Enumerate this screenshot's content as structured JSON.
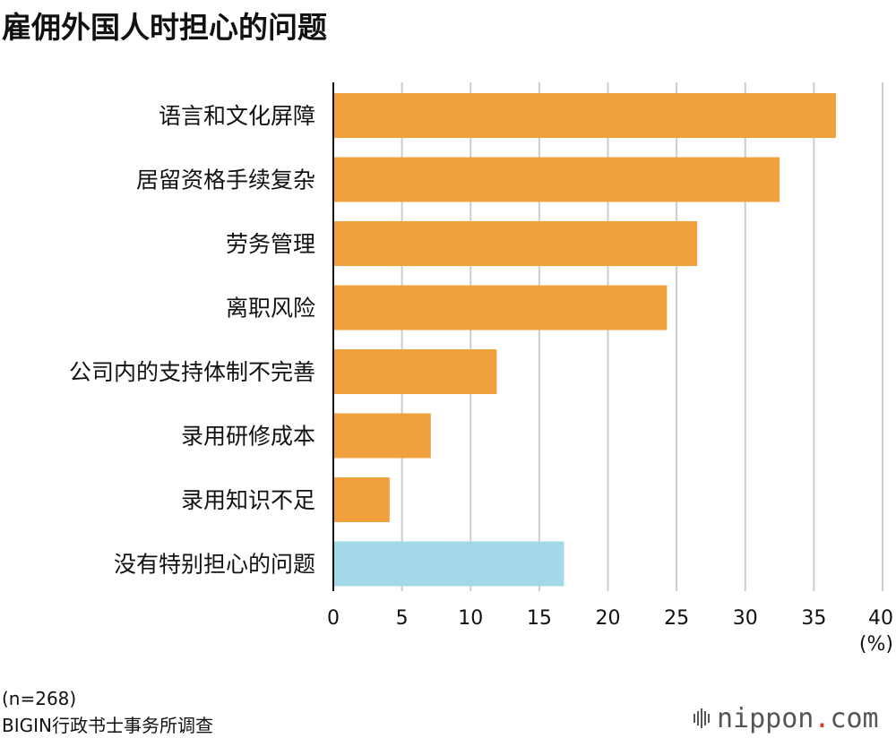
{
  "title": "雇佣外国人时担心的问题",
  "colors": {
    "bar": "#f0a03c",
    "highlight": "#a2d8e8",
    "grid": "#cccccc",
    "axis": "#111111"
  },
  "chart_data": {
    "type": "bar",
    "orientation": "horizontal",
    "title": "雇佣外国人时担心的问题",
    "categories": [
      "语言和文化屏障",
      "居留资格手续复杂",
      "劳务管理",
      "离职风险",
      "公司内的支持体制不完善",
      "录用研修成本",
      "录用知识不足",
      "没有特别担心的问题"
    ],
    "values": [
      36.6,
      32.5,
      26.5,
      24.3,
      11.9,
      7.1,
      4.1,
      16.8
    ],
    "highlight_index": 7,
    "xlim": [
      0,
      40
    ],
    "ticks": [
      "0",
      "5",
      "10",
      "15",
      "20",
      "25",
      "30",
      "35",
      "40"
    ],
    "unit": "(%)",
    "grid": true
  },
  "notes": {
    "n": "(n=268)",
    "source": "BIGIN行政书士事务所调查"
  },
  "logo": {
    "text": "nippon",
    "dot": ".",
    "suffix": "com"
  }
}
